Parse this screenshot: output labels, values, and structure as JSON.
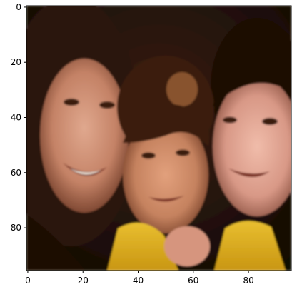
{
  "image": {
    "description_icon": "three-children-portrait",
    "pixel_grid": [
      96,
      96
    ],
    "palette": {
      "background_dark": "#1a0c06",
      "hair_dark": "#2e1509",
      "hair_light": "#a96a3c",
      "skin_left": "#c98b72",
      "skin_middle": "#d09071",
      "skin_right": "#dca393",
      "eyes": "#3a1c10",
      "mouth": "#7d3527",
      "teeth": "#eae0d4",
      "shirt_yellow": "#e0b21f",
      "shirt_shadow": "#9a6b0c"
    }
  },
  "axes": {
    "x_ticks": [
      "0",
      "20",
      "40",
      "60",
      "80"
    ],
    "y_ticks": [
      "0",
      "20",
      "40",
      "60",
      "80"
    ],
    "xlim": [
      -0.5,
      95.5
    ],
    "ylim": [
      95.5,
      -0.5
    ]
  }
}
